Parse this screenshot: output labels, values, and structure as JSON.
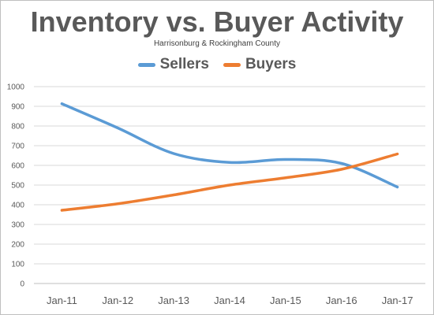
{
  "chart_data": {
    "type": "line",
    "title": "Inventory vs. Buyer Activity",
    "subtitle": "Harrisonburg & Rockingham County",
    "xlabel": "",
    "ylabel": "",
    "categories": [
      "Jan-11",
      "Jan-12",
      "Jan-13",
      "Jan-14",
      "Jan-15",
      "Jan-16",
      "Jan-17"
    ],
    "series": [
      {
        "name": "Sellers",
        "color": "#5b9bd5",
        "values": [
          913,
          790,
          660,
          615,
          630,
          610,
          490
        ]
      },
      {
        "name": "Buyers",
        "color": "#ed7d31",
        "values": [
          372,
          405,
          450,
          500,
          537,
          580,
          658
        ]
      }
    ],
    "ylim": [
      0,
      1000
    ],
    "ytick_step": 100,
    "grid": true,
    "legend_position": "top"
  }
}
